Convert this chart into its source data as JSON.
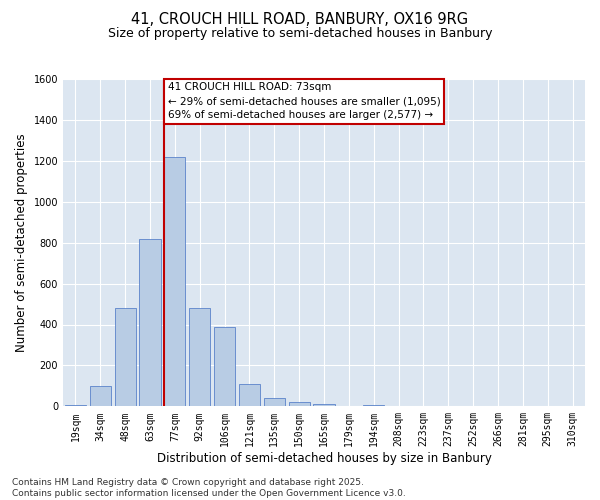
{
  "title_line1": "41, CROUCH HILL ROAD, BANBURY, OX16 9RG",
  "title_line2": "Size of property relative to semi-detached houses in Banbury",
  "xlabel": "Distribution of semi-detached houses by size in Banbury",
  "ylabel": "Number of semi-detached properties",
  "categories": [
    "19sqm",
    "34sqm",
    "48sqm",
    "63sqm",
    "77sqm",
    "92sqm",
    "106sqm",
    "121sqm",
    "135sqm",
    "150sqm",
    "165sqm",
    "179sqm",
    "194sqm",
    "208sqm",
    "223sqm",
    "237sqm",
    "252sqm",
    "266sqm",
    "281sqm",
    "295sqm",
    "310sqm"
  ],
  "values": [
    5,
    100,
    480,
    820,
    1220,
    480,
    390,
    110,
    40,
    20,
    10,
    0,
    5,
    2,
    1,
    0,
    0,
    0,
    0,
    0,
    0
  ],
  "bar_color": "#b8cce4",
  "bar_edgecolor": "#4472c4",
  "vline_index": 4,
  "vline_color": "#c00000",
  "annotation_text": "41 CROUCH HILL ROAD: 73sqm\n← 29% of semi-detached houses are smaller (1,095)\n69% of semi-detached houses are larger (2,577) →",
  "annotation_box_color": "#ffffff",
  "annotation_box_edgecolor": "#c00000",
  "ylim": [
    0,
    1600
  ],
  "yticks": [
    0,
    200,
    400,
    600,
    800,
    1000,
    1200,
    1400,
    1600
  ],
  "footnote": "Contains HM Land Registry data © Crown copyright and database right 2025.\nContains public sector information licensed under the Open Government Licence v3.0.",
  "bg_color": "#ffffff",
  "plot_bg_color": "#dce6f1",
  "grid_color": "#ffffff",
  "title_fontsize": 10.5,
  "subtitle_fontsize": 9,
  "tick_fontsize": 7,
  "label_fontsize": 8.5,
  "annotation_fontsize": 7.5,
  "footnote_fontsize": 6.5
}
